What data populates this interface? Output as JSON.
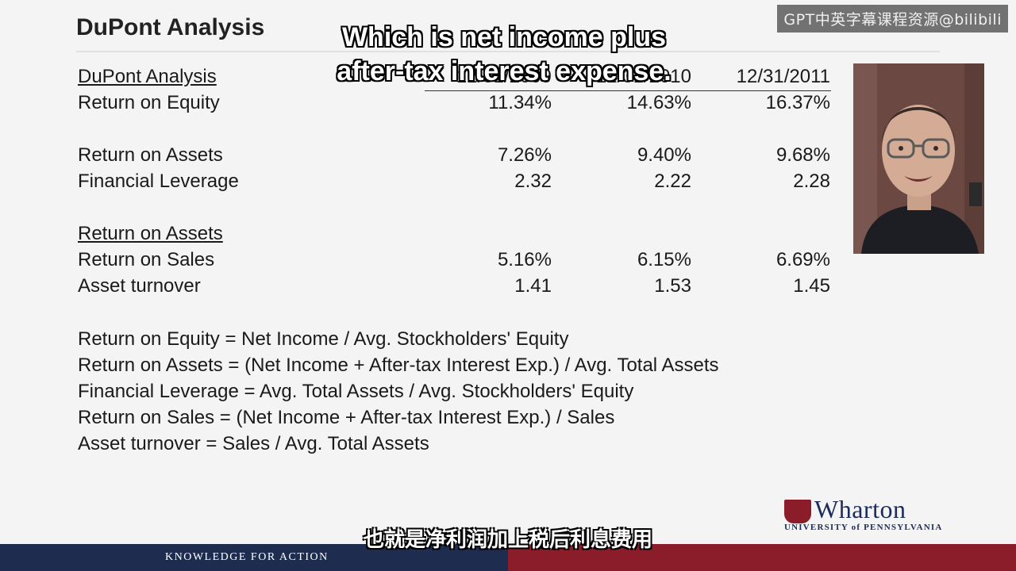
{
  "title": "DuPont Analysis",
  "watermark": "GPT中英字幕课程资源@bilibili",
  "caption_en": "Which is net income plus after-tax interest expense.",
  "caption_zh": "也就是净利润加上税后利息费用",
  "table": {
    "header": {
      "label": "DuPont Analysis",
      "dates": [
        "12/31/2009",
        "12/31/2010",
        "12/31/2011"
      ]
    },
    "roe": {
      "label": "Return on Equity",
      "values": [
        "11.34%",
        "14.63%",
        "16.37%"
      ]
    },
    "roa": {
      "label": "Return on Assets",
      "values": [
        "7.26%",
        "9.40%",
        "9.68%"
      ]
    },
    "leverage": {
      "label": "Financial Leverage",
      "values": [
        "2.32",
        "2.22",
        "2.28"
      ]
    },
    "roa_header": {
      "label": "Return on Assets"
    },
    "ros": {
      "label": "Return on Sales",
      "values": [
        "5.16%",
        "6.15%",
        "6.69%"
      ]
    },
    "turnover": {
      "label": "Asset turnover",
      "values": [
        "1.41",
        "1.53",
        "1.45"
      ]
    }
  },
  "formulas": [
    "Return on Equity = Net Income / Avg. Stockholders' Equity",
    "Return on Assets = (Net Income + After-tax Interest Exp.) / Avg. Total Assets",
    "Financial Leverage = Avg. Total Assets / Avg. Stockholders' Equity",
    "Return on Sales =  (Net Income + After-tax Interest Exp.) / Sales",
    "Asset turnover = Sales / Avg. Total Assets"
  ],
  "logo": {
    "name": "Wharton",
    "sub": "UNIVERSITY of PENNSYLVANIA"
  },
  "footer": {
    "tagline": "KNOWLEDGE FOR ACTION"
  },
  "colors": {
    "navy": "#1e2d4f",
    "crimson": "#8b1c2a"
  }
}
